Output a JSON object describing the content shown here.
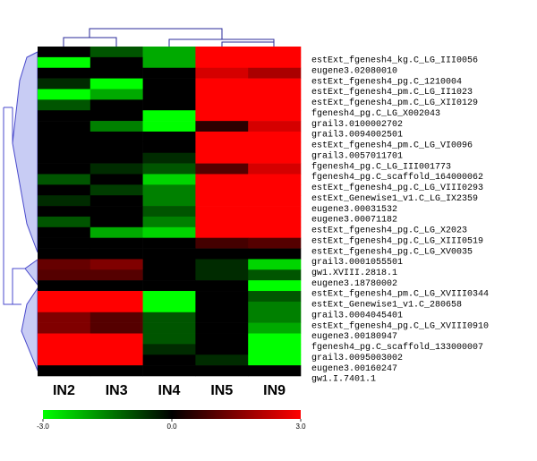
{
  "chart_data": {
    "type": "heatmap",
    "columns": [
      "IN2",
      "IN3",
      "IN4",
      "IN5",
      "IN9"
    ],
    "rows": [
      "estExt_fgenesh4_kg.C_LG_III0056",
      "eugene3.02080010",
      "estExt_fgenesh4_pg.C_1210004",
      "estExt_fgenesh4_pm.C_LG_II1023",
      "estExt_fgenesh4_pm.C_LG_XII0129",
      "fgenesh4_pg.C_LG_X002043",
      "grail3.0100002702",
      "grail3.0094002501",
      "estExt_fgenesh4_pm.C_LG_VI0096",
      "grail3.0057011701",
      "fgenesh4_pg.C_LG_III001773",
      "fgenesh4_pg.C_scaffold_164000062",
      "estExt_fgenesh4_pg.C_LG_VIII0293",
      "estExt_Genewise1_v1.C_LG_IX2359",
      "eugene3.00031532",
      "eugene3.00071182",
      "estExt_fgenesh4_pg.C_LG_X2023",
      "estExt_fgenesh4_pg.C_LG_XIII0519",
      "estExt_fgenesh4_pg.C_LG_XV0035",
      "grail3.0001055501",
      "gw1.XVIII.2818.1",
      "eugene3.18780002",
      "estExt_fgenesh4_pm.C_LG_XVIII0344",
      "estExt_Genewise1_v1.C_280658",
      "grail3.0004045401",
      "estExt_fgenesh4_pg.C_LG_XVIII0910",
      "eugene3.00180947",
      "fgenesh4_pg.C_scaffold_133000007",
      "grail3.0095003002",
      "eugene3.00160247",
      "gw1.I.7401.1"
    ],
    "values": [
      [
        0,
        -1,
        -2,
        3,
        3
      ],
      [
        -3,
        0,
        -2,
        3,
        3
      ],
      [
        0,
        0,
        0,
        2.5,
        2
      ],
      [
        -0.5,
        -3,
        0,
        3,
        3
      ],
      [
        -3,
        -2,
        0,
        3,
        3
      ],
      [
        -1,
        0,
        0,
        3,
        3
      ],
      [
        0,
        0,
        -3,
        3,
        3
      ],
      [
        0,
        -1.5,
        -3,
        0.5,
        2.5
      ],
      [
        0,
        0,
        0,
        3,
        3
      ],
      [
        0,
        0,
        0,
        3,
        3
      ],
      [
        0,
        0,
        -0.5,
        3,
        3
      ],
      [
        0,
        -0.5,
        -1,
        1,
        2.5
      ],
      [
        -1,
        0,
        -2.5,
        3,
        3
      ],
      [
        0,
        -0.7,
        -1.5,
        3,
        3
      ],
      [
        -0.5,
        0,
        -1.5,
        3,
        3
      ],
      [
        0,
        0,
        -1,
        3,
        3
      ],
      [
        -1,
        0,
        -1.5,
        3,
        3
      ],
      [
        0,
        -2,
        -2.5,
        3,
        3
      ],
      [
        0,
        0,
        0,
        0.8,
        1
      ],
      [
        0,
        0,
        0,
        0,
        0
      ],
      [
        1.2,
        1.5,
        0,
        -0.5,
        -2.5
      ],
      [
        1,
        1,
        0,
        -0.5,
        -1
      ],
      [
        0,
        0,
        0,
        0,
        -3
      ],
      [
        3,
        3,
        -3,
        0,
        -1
      ],
      [
        3,
        3,
        -3,
        0,
        -1.5
      ],
      [
        1.5,
        1,
        -1,
        0,
        -1.5
      ],
      [
        1.5,
        1,
        -1,
        0,
        -2
      ],
      [
        3,
        3,
        -1,
        0,
        -3
      ],
      [
        3,
        3,
        -0.5,
        0,
        -3
      ],
      [
        3,
        3,
        0,
        -0.5,
        -3
      ],
      [
        0,
        0,
        0,
        0,
        0
      ]
    ],
    "clim": [
      -3,
      3
    ],
    "colors": {
      "low": "#00ff00",
      "mid": "#000000",
      "high": "#ff0000"
    },
    "colorbar_ticks": [
      {
        "value": -3,
        "label": "-3.0"
      },
      {
        "value": 0,
        "label": "0.0"
      },
      {
        "value": 3,
        "label": "3.0"
      }
    ]
  }
}
